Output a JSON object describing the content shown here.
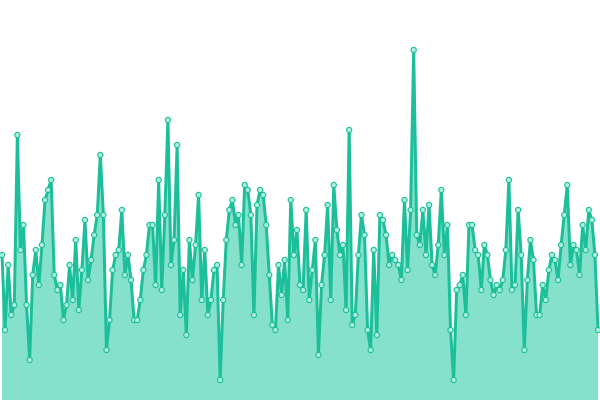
{
  "chart_data": {
    "type": "area",
    "values": [
      145,
      70,
      135,
      85,
      95,
      265,
      150,
      175,
      95,
      40,
      125,
      150,
      115,
      155,
      200,
      210,
      220,
      125,
      110,
      115,
      80,
      95,
      135,
      100,
      160,
      90,
      130,
      180,
      120,
      140,
      165,
      185,
      245,
      185,
      50,
      80,
      130,
      145,
      150,
      190,
      125,
      145,
      120,
      80,
      80,
      100,
      130,
      145,
      175,
      175,
      115,
      220,
      110,
      185,
      280,
      135,
      160,
      255,
      85,
      130,
      65,
      160,
      120,
      155,
      205,
      100,
      150,
      85,
      100,
      130,
      135,
      20,
      100,
      160,
      190,
      200,
      175,
      185,
      135,
      215,
      210,
      185,
      85,
      195,
      210,
      205,
      175,
      125,
      75,
      70,
      135,
      105,
      140,
      80,
      200,
      145,
      170,
      115,
      110,
      190,
      100,
      130,
      160,
      45,
      115,
      145,
      195,
      100,
      215,
      170,
      145,
      155,
      90,
      270,
      75,
      85,
      145,
      185,
      165,
      70,
      50,
      150,
      65,
      185,
      180,
      165,
      135,
      145,
      140,
      135,
      120,
      200,
      130,
      190,
      350,
      165,
      155,
      190,
      145,
      195,
      135,
      125,
      155,
      210,
      145,
      175,
      70,
      20,
      110,
      115,
      125,
      85,
      175,
      175,
      150,
      145,
      110,
      155,
      145,
      120,
      105,
      115,
      110,
      120,
      150,
      220,
      110,
      115,
      190,
      145,
      50,
      120,
      160,
      140,
      85,
      85,
      115,
      100,
      130,
      145,
      140,
      120,
      155,
      185,
      215,
      135,
      155,
      150,
      125,
      175,
      150,
      190,
      180,
      145,
      70
    ],
    "ylim": [
      0,
      400
    ],
    "color": "#1dbf9a",
    "fill": "#85e1cc"
  }
}
